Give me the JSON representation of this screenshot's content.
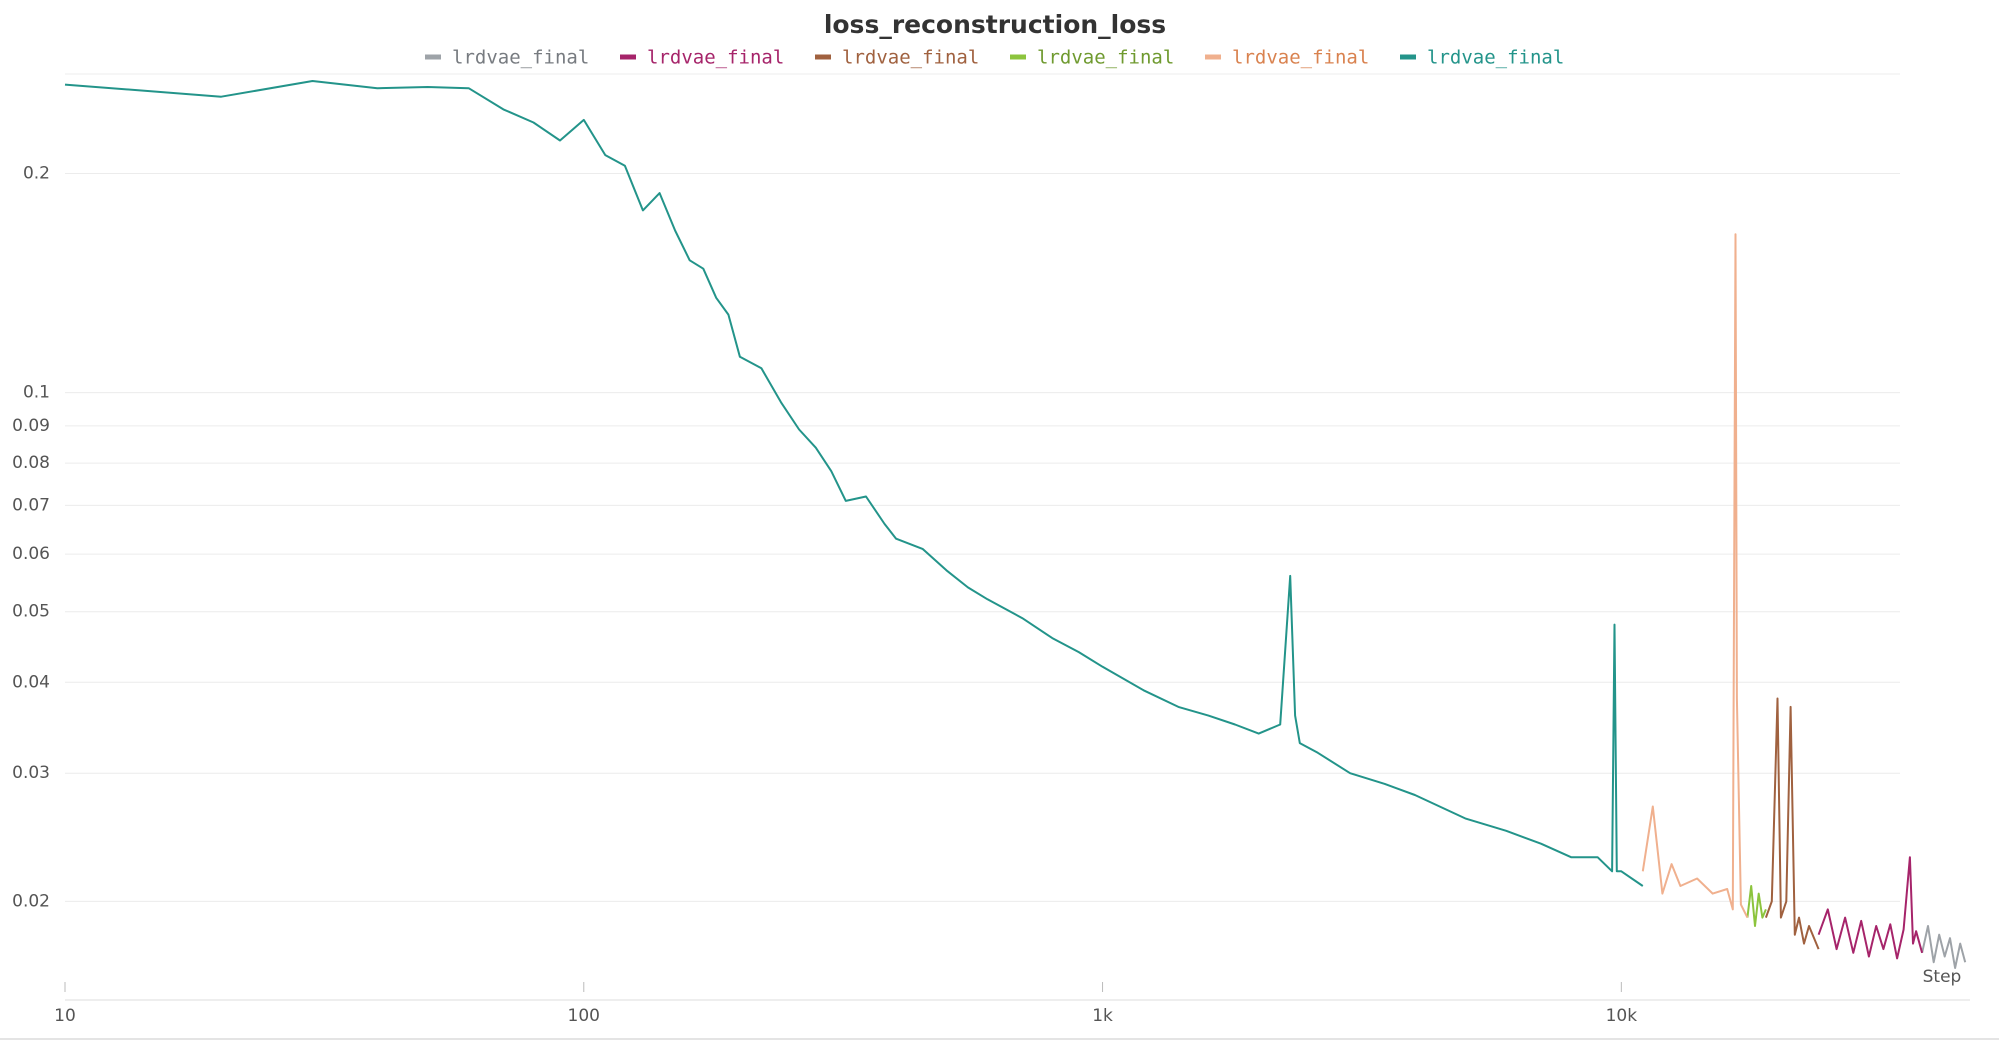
{
  "chart_data": {
    "type": "line",
    "title": "loss_reconstruction_loss",
    "x_label": "Step",
    "xscale": "log",
    "yscale": "log",
    "grid": true,
    "xlim": [
      10,
      47000
    ],
    "ylim": [
      0.0154,
      0.274
    ],
    "xticks": [
      10,
      100,
      {
        "value": 1000,
        "label": "1k"
      },
      {
        "value": 10000,
        "label": "10k"
      }
    ],
    "yticks": [
      0.02,
      0.03,
      0.04,
      0.05,
      0.06,
      0.07,
      0.08,
      0.09,
      0.1,
      0.2
    ],
    "series": [
      {
        "name": "lrdvae_final",
        "color": "#9ea3a8",
        "legend_color": "#777b80",
        "x": [
          38000,
          39000,
          40000,
          41000,
          42000,
          43000,
          44000,
          45000,
          46000
        ],
        "values": [
          0.017,
          0.0185,
          0.0165,
          0.018,
          0.0168,
          0.0178,
          0.0162,
          0.0175,
          0.0165
        ]
      },
      {
        "name": "lrdvae_final",
        "color": "#a6246a",
        "legend_color": "#a6246a",
        "x": [
          24000,
          25000,
          26000,
          27000,
          28000,
          29000,
          30000,
          31000,
          32000,
          33000,
          34000,
          35000,
          36000,
          36500,
          37000,
          38000
        ],
        "values": [
          0.018,
          0.0195,
          0.0172,
          0.019,
          0.017,
          0.0188,
          0.0168,
          0.0185,
          0.0172,
          0.0186,
          0.0167,
          0.0183,
          0.023,
          0.0175,
          0.0182,
          0.017
        ]
      },
      {
        "name": "lrdvae_final",
        "color": "#a0613f",
        "legend_color": "#a0613f",
        "x": [
          19000,
          19500,
          20000,
          20300,
          20800,
          21200,
          21600,
          22000,
          22500,
          23000,
          24000
        ],
        "values": [
          0.019,
          0.02,
          0.038,
          0.019,
          0.02,
          0.037,
          0.018,
          0.019,
          0.0175,
          0.0185,
          0.0172
        ]
      },
      {
        "name": "lrdvae_final",
        "color": "#8cc43d",
        "legend_color": "#6f9a2f",
        "x": [
          17500,
          17800,
          18100,
          18400,
          18700,
          19000
        ],
        "values": [
          0.019,
          0.021,
          0.0185,
          0.0205,
          0.019,
          0.0195
        ]
      },
      {
        "name": "lrdvae_final",
        "color": "#f0b08e",
        "legend_color": "#d9824f",
        "x": [
          11000,
          11500,
          12000,
          12500,
          13000,
          14000,
          15000,
          16000,
          16400,
          16600,
          16700,
          17000,
          17500
        ],
        "values": [
          0.022,
          0.027,
          0.0205,
          0.0225,
          0.021,
          0.0215,
          0.0205,
          0.0208,
          0.0195,
          0.165,
          0.038,
          0.0198,
          0.019
        ]
      },
      {
        "name": "lrdvae_final",
        "color": "#23948a",
        "legend_color": "#23948a",
        "x": [
          10,
          20,
          30,
          40,
          50,
          60,
          70,
          80,
          90,
          100,
          110,
          120,
          130,
          140,
          150,
          160,
          170,
          180,
          190,
          200,
          220,
          240,
          260,
          280,
          300,
          320,
          350,
          380,
          400,
          450,
          500,
          550,
          600,
          700,
          800,
          900,
          1000,
          1200,
          1400,
          1600,
          1800,
          2000,
          2200,
          2300,
          2350,
          2400,
          2600,
          3000,
          3500,
          4000,
          5000,
          6000,
          7000,
          8000,
          9000,
          9600,
          9700,
          9800,
          10000,
          11000
        ],
        "values": [
          0.265,
          0.255,
          0.268,
          0.262,
          0.263,
          0.262,
          0.245,
          0.235,
          0.222,
          0.237,
          0.212,
          0.205,
          0.178,
          0.188,
          0.167,
          0.152,
          0.148,
          0.135,
          0.128,
          0.112,
          0.108,
          0.097,
          0.089,
          0.084,
          0.078,
          0.071,
          0.072,
          0.066,
          0.063,
          0.061,
          0.057,
          0.054,
          0.052,
          0.049,
          0.046,
          0.044,
          0.042,
          0.039,
          0.037,
          0.036,
          0.035,
          0.034,
          0.035,
          0.056,
          0.036,
          0.033,
          0.032,
          0.03,
          0.029,
          0.028,
          0.026,
          0.025,
          0.024,
          0.023,
          0.023,
          0.022,
          0.048,
          0.022,
          0.022,
          0.021
        ]
      }
    ]
  }
}
